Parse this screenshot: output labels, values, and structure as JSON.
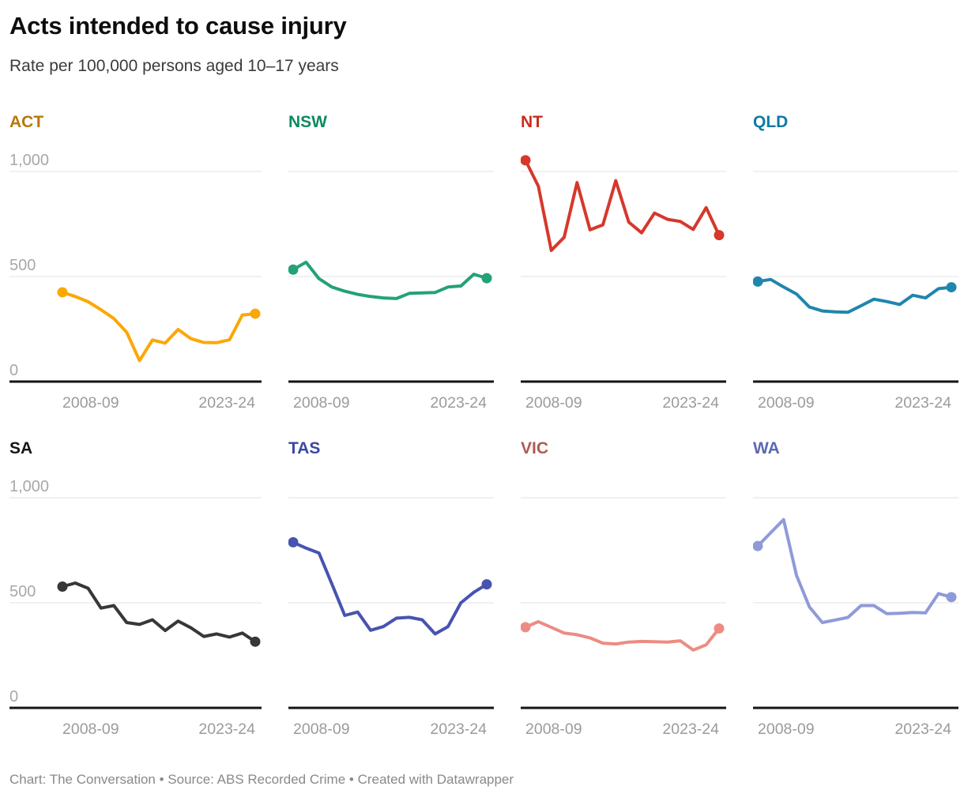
{
  "header": {
    "title": "Acts intended to cause injury",
    "subtitle": "Rate per 100,000 persons aged 10–17 years"
  },
  "footer": {
    "text": "Chart: The Conversation • Source: ABS Recorded Crime • Created with Datawrapper"
  },
  "axis": {
    "x_first_label": "2008-09",
    "x_last_label": "2023-24",
    "y_tick_labels": [
      "1,000",
      "500",
      "0"
    ],
    "tick_color": "#9b9b9b",
    "gridline_color": "#e2e2e2",
    "baseline_color": "#141414"
  },
  "chart_data": {
    "type": "line",
    "layout": "small-multiples-2x4",
    "title": "Acts intended to cause injury",
    "subtitle": "Rate per 100,000 persons aged 10–17 years",
    "units": "rate per 100,000 persons aged 10–17 years",
    "x": [
      "2008-09",
      "2009-10",
      "2010-11",
      "2011-12",
      "2012-13",
      "2013-14",
      "2014-15",
      "2015-16",
      "2016-17",
      "2017-18",
      "2018-19",
      "2019-20",
      "2020-21",
      "2021-22",
      "2022-23",
      "2023-24"
    ],
    "x_tick_labels_shown": [
      "2008-09",
      "2023-24"
    ],
    "ylim": [
      0,
      1000
    ],
    "y_gridlines": [
      0,
      500,
      1000
    ],
    "y_tick_labels": [
      "1,000",
      "500",
      "0"
    ],
    "grid": true,
    "legend_position": "none (colored panel titles)",
    "series": [
      {
        "name": "ACT",
        "color": "#FCA708",
        "title_color": "#B8770B",
        "values": [
          425,
          405,
          380,
          342,
          300,
          235,
          100,
          198,
          183,
          248,
          204,
          186,
          185,
          199,
          317,
          323
        ]
      },
      {
        "name": "NSW",
        "color": "#23A277",
        "title_color": "#0D8A60",
        "values": [
          533,
          568,
          490,
          450,
          430,
          415,
          405,
          398,
          395,
          420,
          422,
          424,
          450,
          455,
          511,
          492
        ]
      },
      {
        "name": "NT",
        "color": "#D6382C",
        "title_color": "#CB2C1D",
        "values": [
          1053,
          930,
          624,
          687,
          947,
          722,
          746,
          956,
          759,
          708,
          802,
          772,
          762,
          724,
          828,
          697
        ]
      },
      {
        "name": "QLD",
        "color": "#1F86AE",
        "title_color": "#0E7AA4",
        "values": [
          476,
          486,
          450,
          417,
          355,
          336,
          332,
          330,
          361,
          392,
          381,
          367,
          411,
          398,
          442,
          449
        ]
      },
      {
        "name": "SA",
        "color": "#373737",
        "title_color": "#151515",
        "values": [
          577,
          594,
          569,
          475,
          487,
          406,
          397,
          419,
          368,
          413,
          381,
          340,
          352,
          337,
          356,
          315
        ]
      },
      {
        "name": "TAS",
        "color": "#4754AF",
        "title_color": "#3B47A3",
        "values": [
          788,
          760,
          737,
          590,
          440,
          456,
          369,
          387,
          427,
          431,
          419,
          352,
          387,
          500,
          550,
          588
        ]
      },
      {
        "name": "VIC",
        "color": "#EC8C83",
        "title_color": "#AE5A54",
        "values": [
          384,
          410,
          383,
          356,
          348,
          333,
          308,
          304,
          313,
          316,
          315,
          313,
          319,
          275,
          300,
          378
        ]
      },
      {
        "name": "WA",
        "color": "#8F9AD9",
        "title_color": "#5B69B3",
        "values": [
          770,
          833,
          896,
          631,
          481,
          406,
          418,
          431,
          487,
          487,
          448,
          450,
          454,
          452,
          544,
          527
        ]
      }
    ]
  }
}
